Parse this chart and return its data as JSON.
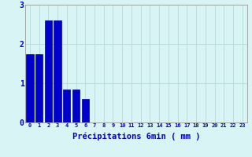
{
  "values": [
    1.75,
    1.75,
    2.6,
    2.6,
    0.85,
    0.85,
    0.6,
    0,
    0,
    0,
    0,
    0,
    0,
    0,
    0,
    0,
    0,
    0,
    0,
    0,
    0,
    0,
    0,
    0
  ],
  "xlabel": "Précipitations 6min ( mm )",
  "ylim": [
    0,
    3
  ],
  "xlim": [
    -0.5,
    23.5
  ],
  "yticks": [
    0,
    1,
    2,
    3
  ],
  "xtick_labels": [
    "0",
    "1",
    "2",
    "3",
    "4",
    "5",
    "6",
    "7",
    "8",
    "9",
    "10",
    "11",
    "12",
    "13",
    "14",
    "15",
    "16",
    "17",
    "18",
    "19",
    "20",
    "21",
    "22",
    "23"
  ],
  "bar_color": "#0000cc",
  "bar_edge_color": "#000099",
  "background_color": "#d8f4f4",
  "grid_color": "#b8d8d8",
  "figsize": [
    3.2,
    2.0
  ],
  "dpi": 100
}
